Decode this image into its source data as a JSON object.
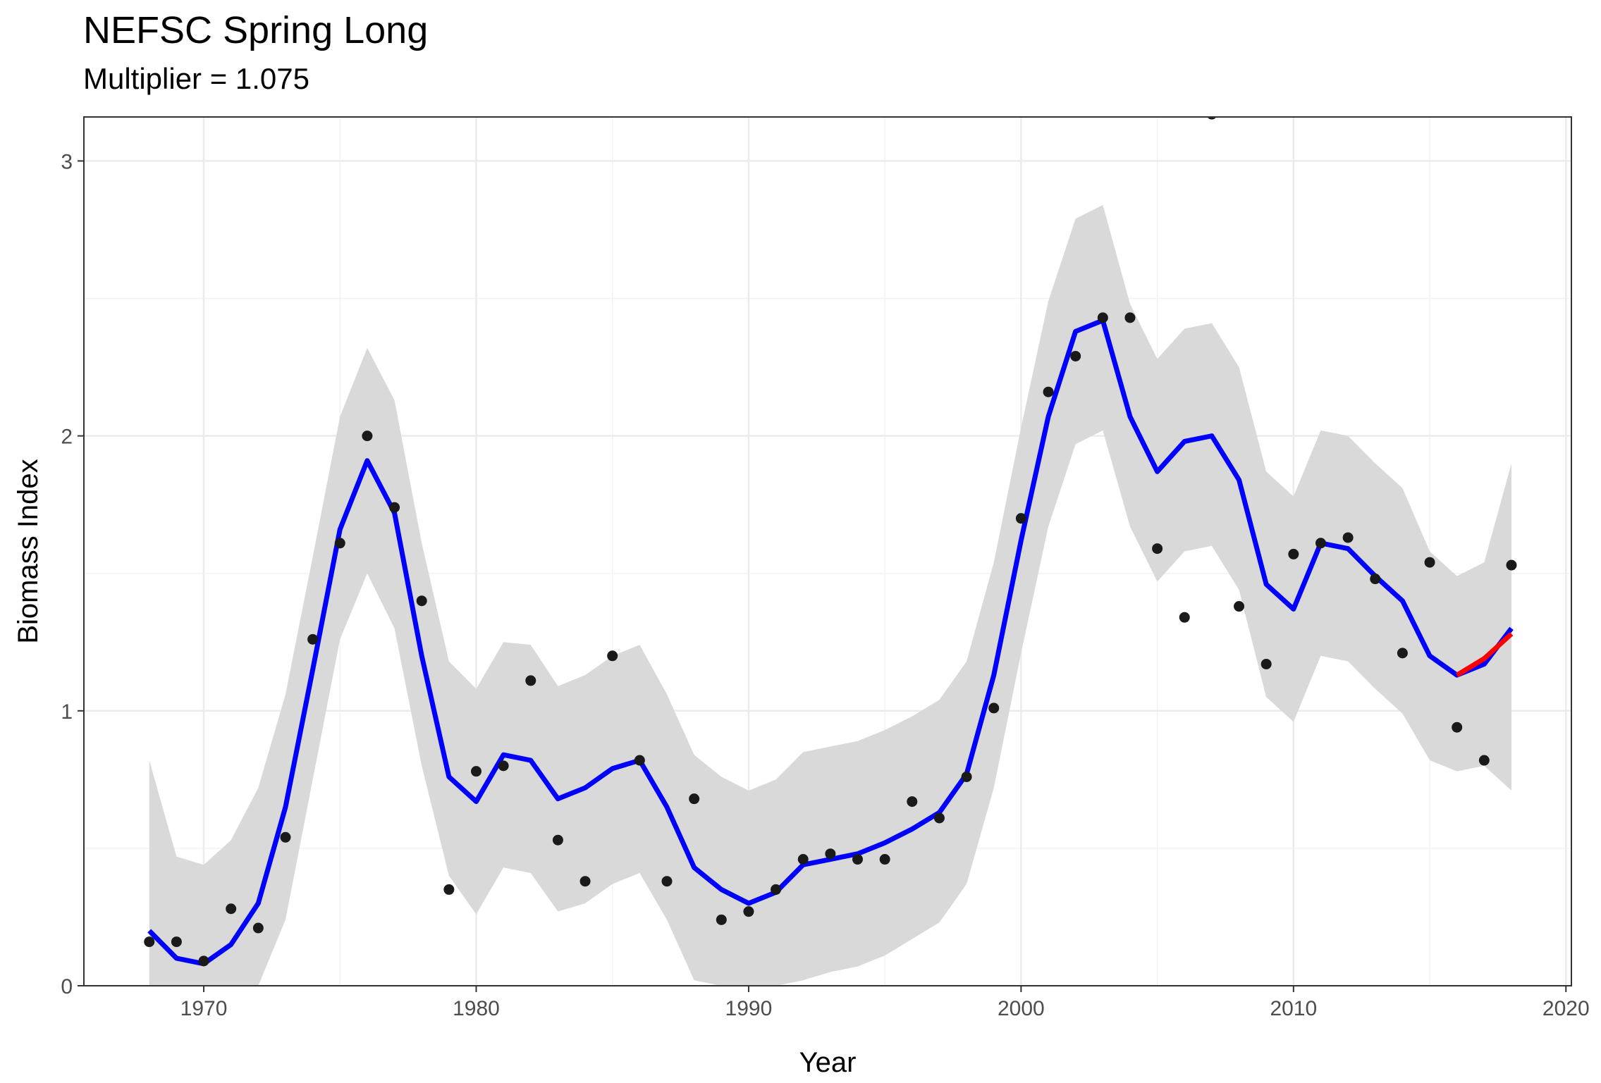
{
  "chart_data": {
    "type": "line",
    "title": "NEFSC Spring Long",
    "subtitle": "Multiplier = 1.075",
    "xlabel": "Year",
    "ylabel": "Biomass Index",
    "xlim": [
      1965.6,
      2020.2
    ],
    "ylim": [
      0,
      3.16
    ],
    "xticks": [
      1970,
      1980,
      1990,
      2000,
      2010,
      2020
    ],
    "yticks": [
      0,
      1,
      2,
      3
    ],
    "grid": true,
    "colors": {
      "fit": "#0000ff",
      "retro": "#ff0000",
      "band": "#d9d9d9",
      "points": "#1a1a1a"
    },
    "x": [
      1968,
      1969,
      1970,
      1971,
      1972,
      1973,
      1974,
      1975,
      1976,
      1977,
      1978,
      1979,
      1980,
      1981,
      1982,
      1983,
      1984,
      1985,
      1986,
      1987,
      1988,
      1989,
      1990,
      1991,
      1992,
      1993,
      1994,
      1995,
      1996,
      1997,
      1998,
      1999,
      2000,
      2001,
      2002,
      2003,
      2004,
      2005,
      2006,
      2007,
      2008,
      2009,
      2010,
      2011,
      2012,
      2013,
      2014,
      2015,
      2016,
      2017,
      2018
    ],
    "series": [
      {
        "role": "observed",
        "values": [
          0.16,
          0.16,
          0.09,
          0.28,
          0.21,
          0.54,
          1.26,
          1.61,
          2.0,
          1.74,
          1.4,
          0.35,
          0.78,
          0.8,
          1.11,
          0.53,
          0.38,
          1.2,
          0.82,
          0.38,
          0.68,
          0.24,
          0.27,
          0.35,
          0.46,
          0.48,
          0.46,
          0.46,
          0.67,
          0.61,
          0.76,
          1.01,
          1.7,
          2.16,
          2.29,
          2.43,
          2.43,
          1.59,
          1.34,
          3.17,
          1.38,
          1.17,
          1.57,
          1.61,
          1.63,
          1.48,
          1.21,
          1.54,
          0.94,
          0.82,
          1.53
        ]
      },
      {
        "role": "fit",
        "values": [
          0.2,
          0.1,
          0.08,
          0.15,
          0.3,
          0.65,
          1.15,
          1.66,
          1.91,
          1.72,
          1.2,
          0.76,
          0.67,
          0.84,
          0.82,
          0.68,
          0.72,
          0.79,
          0.82,
          0.65,
          0.43,
          0.35,
          0.3,
          0.34,
          0.44,
          0.46,
          0.48,
          0.52,
          0.57,
          0.63,
          0.77,
          1.13,
          1.62,
          2.07,
          2.38,
          2.42,
          2.07,
          1.87,
          1.98,
          2.0,
          1.84,
          1.46,
          1.37,
          1.61,
          1.59,
          1.49,
          1.4,
          1.2,
          1.13,
          1.17,
          1.3
        ]
      },
      {
        "role": "lower",
        "values": [
          0.0,
          0.0,
          0.0,
          0.0,
          0.0,
          0.24,
          0.75,
          1.26,
          1.5,
          1.3,
          0.8,
          0.4,
          0.26,
          0.43,
          0.41,
          0.27,
          0.3,
          0.37,
          0.41,
          0.24,
          0.02,
          0.0,
          0.0,
          0.0,
          0.02,
          0.05,
          0.07,
          0.11,
          0.17,
          0.23,
          0.37,
          0.72,
          1.21,
          1.67,
          1.97,
          2.02,
          1.67,
          1.47,
          1.58,
          1.6,
          1.44,
          1.05,
          0.96,
          1.2,
          1.18,
          1.08,
          0.99,
          0.82,
          0.78,
          0.8,
          0.71
        ]
      },
      {
        "role": "upper",
        "values": [
          0.82,
          0.47,
          0.44,
          0.53,
          0.72,
          1.06,
          1.56,
          2.07,
          2.32,
          2.13,
          1.61,
          1.18,
          1.08,
          1.25,
          1.24,
          1.09,
          1.13,
          1.2,
          1.24,
          1.06,
          0.84,
          0.76,
          0.71,
          0.75,
          0.85,
          0.87,
          0.89,
          0.93,
          0.98,
          1.04,
          1.18,
          1.54,
          2.03,
          2.49,
          2.79,
          2.84,
          2.48,
          2.28,
          2.39,
          2.41,
          2.25,
          1.87,
          1.78,
          2.02,
          2.0,
          1.9,
          1.81,
          1.58,
          1.49,
          1.54,
          1.9
        ]
      },
      {
        "role": "retro",
        "x": [
          2016,
          2017,
          2018
        ],
        "values": [
          1.13,
          1.19,
          1.28
        ]
      }
    ]
  }
}
